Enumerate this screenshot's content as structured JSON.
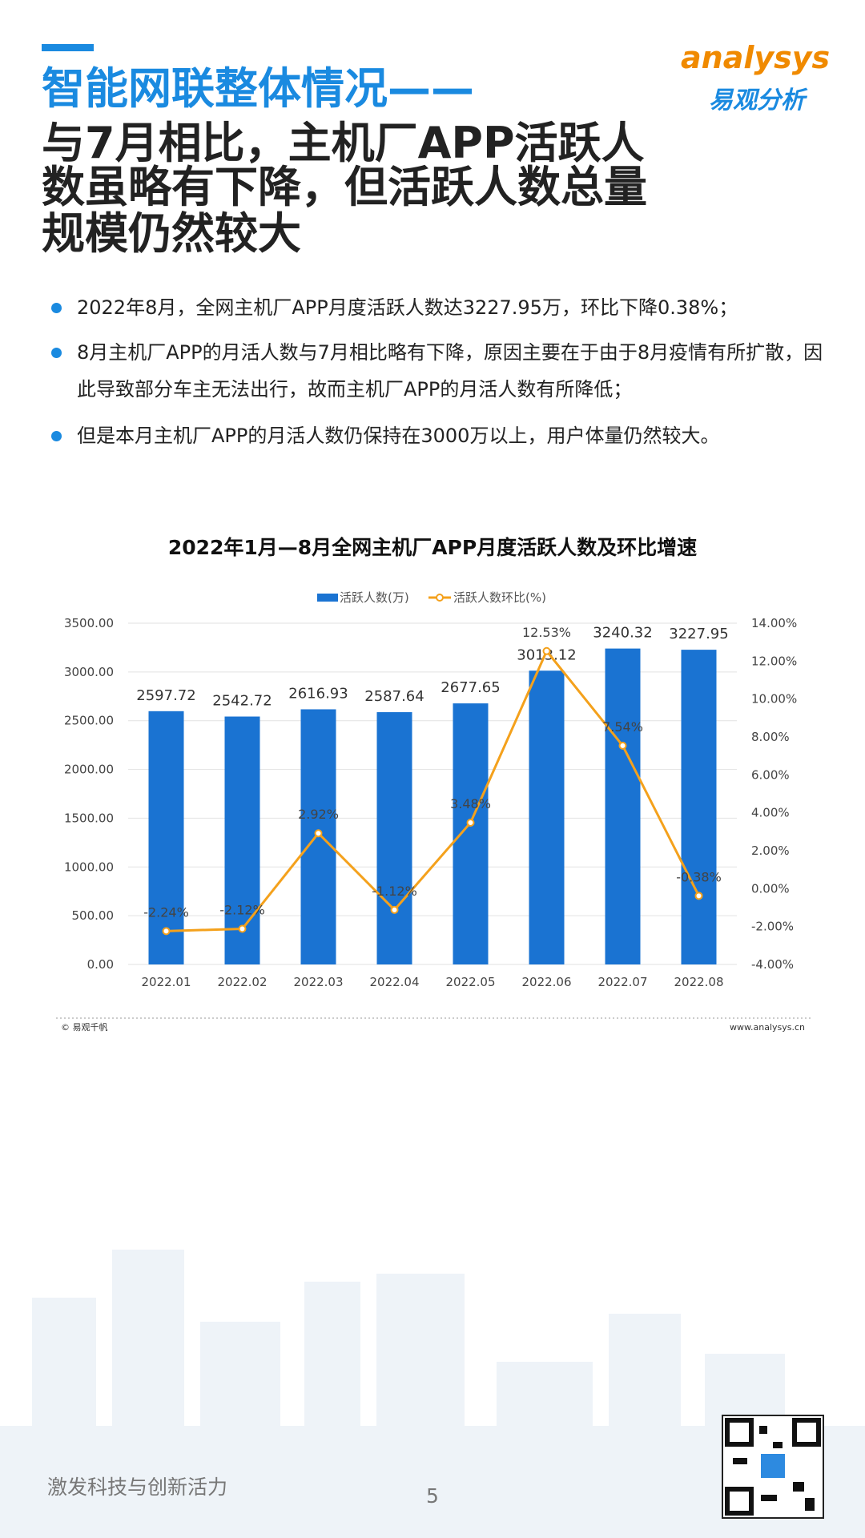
{
  "header": {
    "title_lines": [
      "智能网联整体情况——",
      "与7月相比，主机厂APP活跃人",
      "数虽略有下降，但活跃人数总量",
      "规模仍然较大"
    ],
    "logo": [
      "analysys",
      "易观分析"
    ]
  },
  "bullets": [
    "2022年8月，全网主机厂APP月度活跃人数达3227.95万，环比下降0.38%；",
    "8月主机厂APP的月活人数与7月相比略有下降，原因主要在于由于8月疫情有所扩散，因此导致部分车主无法出行，故而主机厂APP的月活人数有所降低；",
    "但是本月主机厂APP的月活人数仍保持在3000万以上，用户体量仍然较大。"
  ],
  "chart_data": {
    "type": "bar_line",
    "title": "2022年1月—8月全网主机厂APP月度活跃人数及环比增速",
    "categories": [
      "2022.01",
      "2022.02",
      "2022.03",
      "2022.04",
      "2022.05",
      "2022.06",
      "2022.07",
      "2022.08"
    ],
    "series": [
      {
        "name": "活跃人数(万)",
        "color": "#1a73d2",
        "values": [
          2597.72,
          2542.72,
          2616.93,
          2587.64,
          2677.65,
          3013.12,
          3240.32,
          3227.95
        ]
      },
      {
        "name": "活跃人数环比(%)",
        "color": "#f4a11c",
        "axis": "y2",
        "values": [
          -2.24,
          -2.12,
          2.92,
          -1.12,
          3.48,
          12.53,
          7.54,
          -0.38
        ],
        "value_labels": [
          "-2.24%",
          "-2.12%",
          "2.92%",
          "-1.12%",
          "3.48%",
          "12.53%",
          "7.54%",
          "-0.38%"
        ]
      }
    ],
    "ylim": [
      0,
      3500
    ],
    "yticks": [
      {
        "value": 0,
        "label": "0.00"
      },
      {
        "value": 500,
        "label": "500.00"
      },
      {
        "value": 1000,
        "label": "1000.00"
      },
      {
        "value": 1500,
        "label": "1500.00"
      },
      {
        "value": 2000,
        "label": "2000.00"
      },
      {
        "value": 2500,
        "label": "2500.00"
      },
      {
        "value": 3000,
        "label": "3000.00"
      },
      {
        "value": 3500,
        "label": "3500.00"
      }
    ],
    "y2lim": [
      -4,
      14
    ],
    "y2ticks": [
      {
        "value": -4,
        "label": "-4.00%"
      },
      {
        "value": -2,
        "label": "-2.00%"
      },
      {
        "value": 0,
        "label": "0.00%"
      },
      {
        "value": 2,
        "label": "2.00%"
      },
      {
        "value": 4,
        "label": "4.00%"
      },
      {
        "value": 6,
        "label": "6.00%"
      },
      {
        "value": 8,
        "label": "8.00%"
      },
      {
        "value": 10,
        "label": "10.00%"
      },
      {
        "value": 12,
        "label": "12.00%"
      },
      {
        "value": 14,
        "label": "14.00%"
      }
    ],
    "grid": true,
    "legend": "top",
    "source": "© 易观千帆",
    "website": "www.analysys.cn"
  },
  "footer": {
    "slogan": "激发科技与创新活力",
    "page": "5"
  }
}
